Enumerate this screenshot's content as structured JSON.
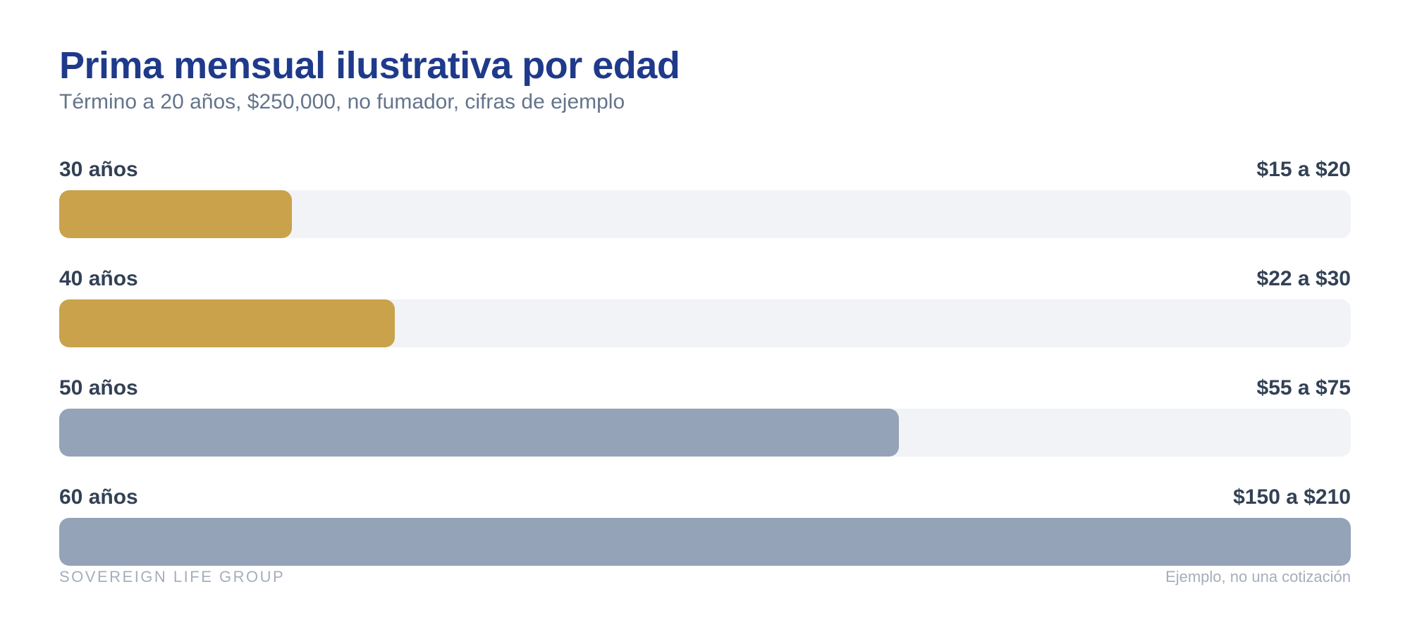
{
  "title": "Prima mensual ilustrativa por edad",
  "subtitle": "Término a 20 años, $250,000, no fumador, cifras de ejemplo",
  "footer": {
    "brand": "SOVEREIGN LIFE GROUP",
    "note": "Ejemplo, no una cotización"
  },
  "colors": {
    "title": "#1f3a8a",
    "highlight": "#c9a24b",
    "muted": "#94a3b8",
    "track": "#f1f3f6"
  },
  "chart_data": {
    "type": "bar",
    "orientation": "horizontal",
    "title": "Prima mensual ilustrativa por edad",
    "subtitle": "Término a 20 años, $250,000, no fumador, cifras de ejemplo",
    "categories": [
      "30 años",
      "40 años",
      "50 años",
      "60 años"
    ],
    "value_labels": [
      "$15 a $20",
      "$22 a $30",
      "$55 a $75",
      "$150 a $210"
    ],
    "ranges": [
      [
        15,
        20
      ],
      [
        22,
        30
      ],
      [
        55,
        75
      ],
      [
        150,
        210
      ]
    ],
    "values": [
      36,
      52,
      130,
      200
    ],
    "max": 200,
    "bar_colors": [
      "#c9a24b",
      "#c9a24b",
      "#94a3b8",
      "#94a3b8"
    ],
    "grid": false,
    "legend": "none"
  }
}
